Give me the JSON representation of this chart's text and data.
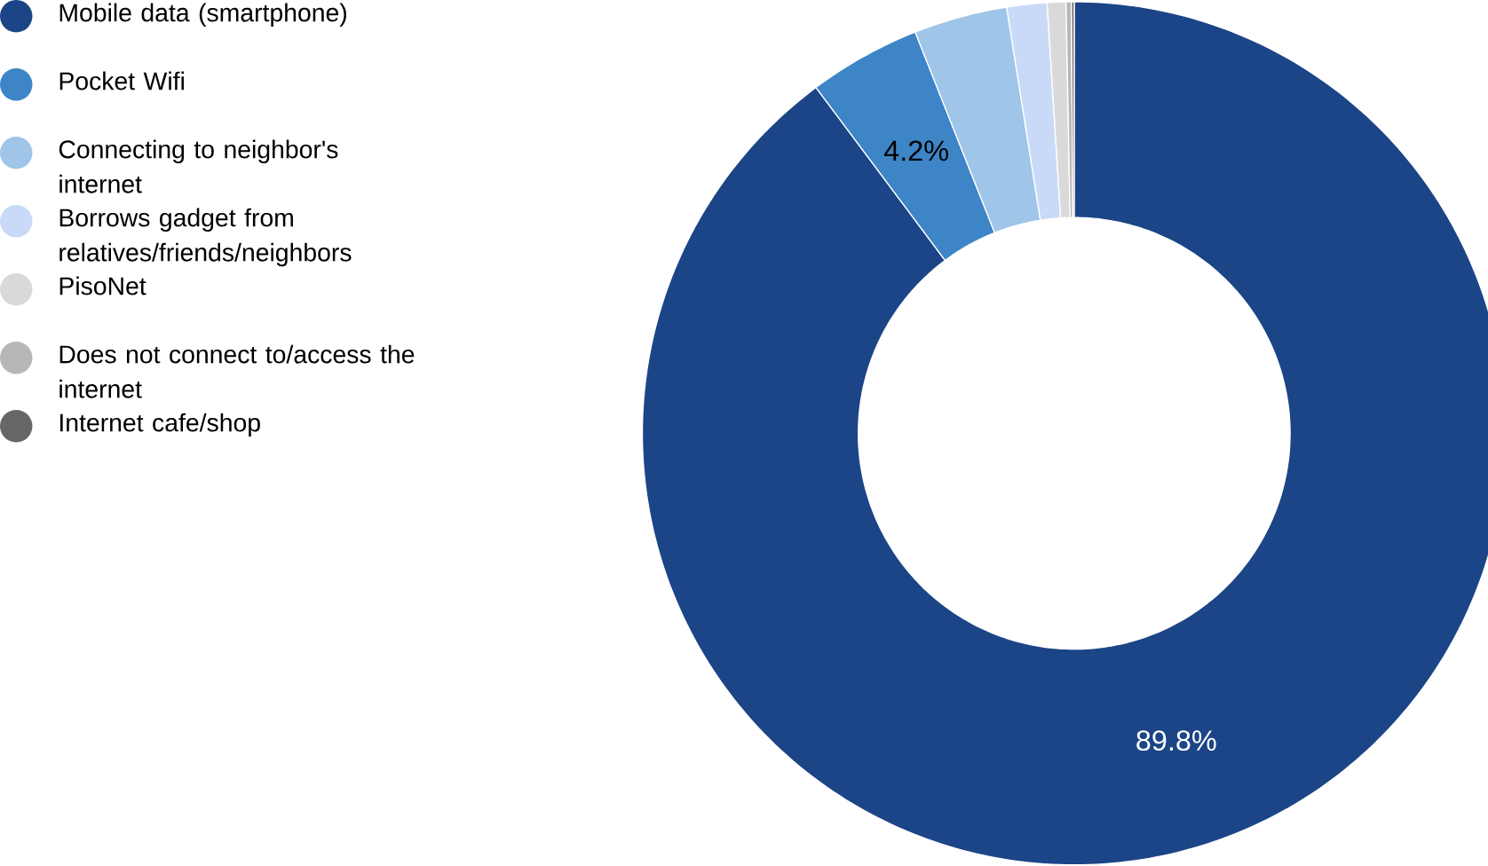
{
  "chart_data": {
    "type": "donut",
    "categories": [
      "Mobile data (smartphone)",
      "Pocket Wifi",
      "Connecting to neighbor's internet",
      "Borrows gadget from relatives/friends/neighbors",
      "PisoNet",
      "Does not connect to/access the internet",
      "Internet cafe/shop"
    ],
    "values": [
      89.8,
      4.2,
      3.5,
      1.5,
      0.7,
      0.2,
      0.1
    ],
    "colors": [
      "#1c4587",
      "#3d85c6",
      "#9fc5e8",
      "#c9daf8",
      "#d9d9d9",
      "#b7b7b7",
      "#666666"
    ],
    "value_labels": [
      "89.8%",
      "4.2%",
      null,
      null,
      null,
      null,
      null
    ],
    "legend": "left"
  }
}
